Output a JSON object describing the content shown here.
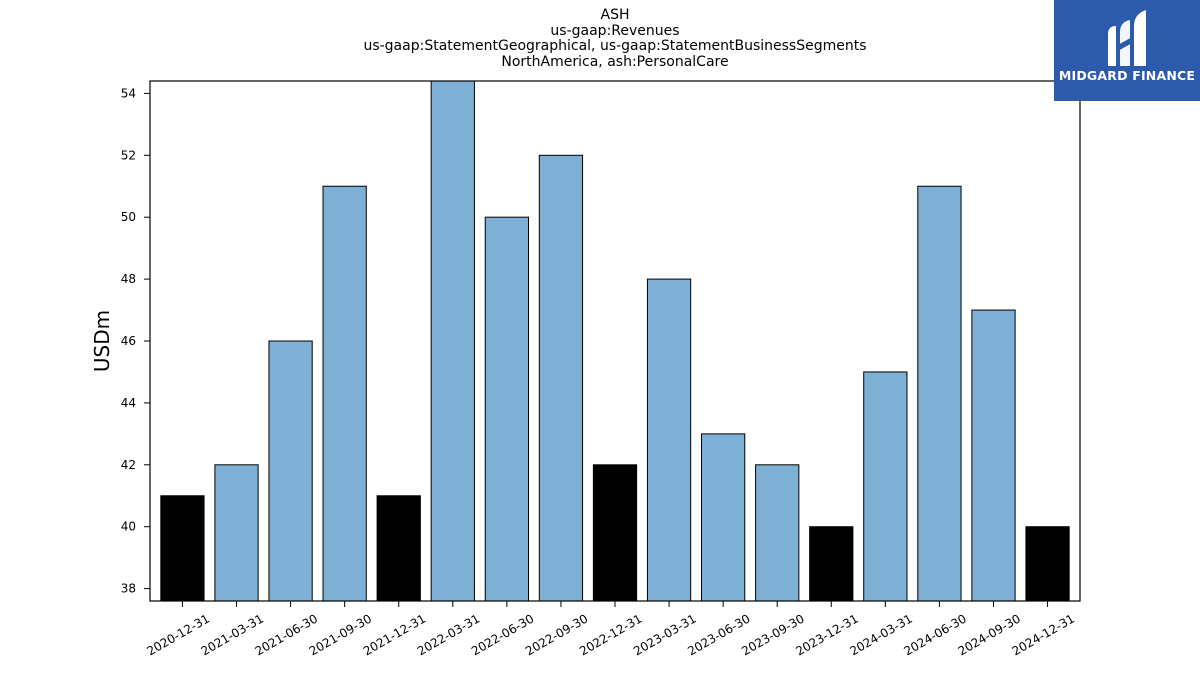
{
  "title_lines": [
    "ASH",
    "us-gaap:Revenues",
    "us-gaap:StatementGeographical, us-gaap:StatementBusinessSegments",
    "NorthAmerica, ash:PersonalCare"
  ],
  "logo": {
    "text": "MIDGARD FINANCE",
    "background": "#2d5bab",
    "icon": "midgard-finance-logo-icon"
  },
  "chart_data": {
    "type": "bar",
    "title": "ASH",
    "subtitle": "us-gaap:Revenues / us-gaap:StatementGeographical, us-gaap:StatementBusinessSegments / NorthAmerica, ash:PersonalCare",
    "xlabel": "",
    "ylabel": "USDm",
    "ylim": [
      37.6,
      54.4
    ],
    "yticks": [
      38,
      40,
      42,
      44,
      46,
      48,
      50,
      52,
      54
    ],
    "grid": false,
    "legend": "none",
    "categories": [
      "2020-12-31",
      "2021-03-31",
      "2021-06-30",
      "2021-09-30",
      "2021-12-31",
      "2022-03-31",
      "2022-06-30",
      "2022-09-30",
      "2022-12-31",
      "2023-03-31",
      "2023-06-30",
      "2023-09-30",
      "2023-12-31",
      "2024-03-31",
      "2024-06-30",
      "2024-09-30",
      "2024-12-31"
    ],
    "values": [
      41,
      42,
      46,
      51,
      41,
      55,
      50,
      52,
      42,
      48,
      43,
      42,
      40,
      45,
      51,
      47,
      40
    ],
    "bar_colors": [
      "#000000",
      "#7eb0d5",
      "#7eb0d5",
      "#7eb0d5",
      "#000000",
      "#7eb0d5",
      "#7eb0d5",
      "#7eb0d5",
      "#000000",
      "#7eb0d5",
      "#7eb0d5",
      "#7eb0d5",
      "#000000",
      "#7eb0d5",
      "#7eb0d5",
      "#7eb0d5",
      "#000000"
    ],
    "colors": {
      "quarter": "#7eb0d5",
      "year_end": "#000000"
    }
  }
}
